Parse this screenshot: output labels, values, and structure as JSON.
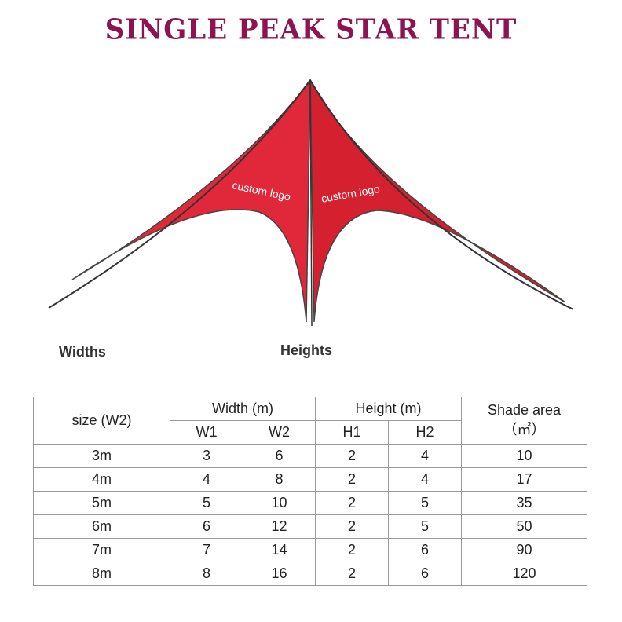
{
  "title": "SINGLE PEAK STAR TENT",
  "tent": {
    "logo_left": "custom logo",
    "logo_right": "custom logo",
    "color": "#e0283a"
  },
  "labels": {
    "widths": "Widths",
    "heights": "Heights"
  },
  "table": {
    "size_header": "size (W2)",
    "width_header": "Width (m)",
    "height_header": "Height (m)",
    "shade_header": "Shade area",
    "shade_unit": "（㎡）",
    "sub": [
      "W1",
      "W2",
      "H1",
      "H2"
    ],
    "rows": [
      [
        "3m",
        "3",
        "6",
        "2",
        "4",
        "10"
      ],
      [
        "4m",
        "4",
        "8",
        "2",
        "4",
        "17"
      ],
      [
        "5m",
        "5",
        "10",
        "2",
        "5",
        "35"
      ],
      [
        "6m",
        "6",
        "12",
        "2",
        "5",
        "50"
      ],
      [
        "7m",
        "7",
        "14",
        "2",
        "6",
        "90"
      ],
      [
        "8m",
        "8",
        "16",
        "2",
        "6",
        "120"
      ]
    ]
  }
}
